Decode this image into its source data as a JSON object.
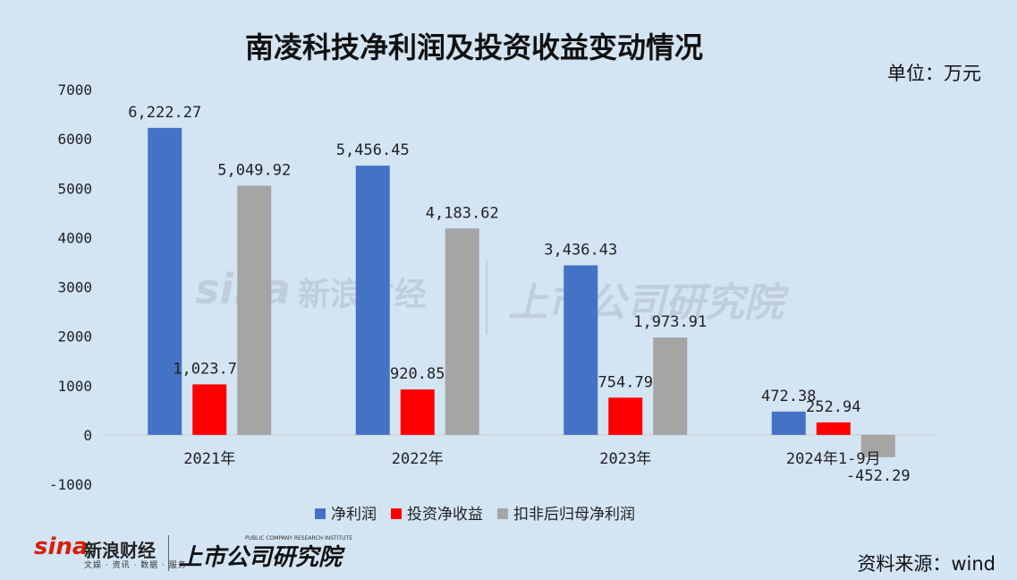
{
  "header": {
    "title": "南凌科技净利润及投资收益变动情况",
    "unit": "单位：万元"
  },
  "footer": {
    "source": "资料来源：wind",
    "logo_sina": "sina",
    "logo_xl": "新浪财经",
    "logo_sub": "文娱 · 资讯 · 数据 · 服务",
    "logo_sc": "上市公司研究院",
    "logo_sc_en": "PUBLIC COMPANY RESEARCH INSTITUTE"
  },
  "chart_data": {
    "type": "bar",
    "categories": [
      "2021年",
      "2022年",
      "2023年",
      "2024年1-9月"
    ],
    "series": [
      {
        "name": "净利润",
        "color": "#4472c4",
        "values": [
          6222.27,
          5456.45,
          3436.43,
          472.38
        ],
        "labels": [
          "6,222.27",
          "5,456.45",
          "3,436.43",
          "472.38"
        ]
      },
      {
        "name": "投资净收益",
        "color": "#ff0000",
        "values": [
          1023.76,
          920.85,
          754.79,
          252.94
        ],
        "labels": [
          "1,023.76",
          "920.85",
          "754.79",
          "252.94"
        ]
      },
      {
        "name": "扣非后归母净利润",
        "color": "#a5a5a5",
        "values": [
          5049.92,
          4183.62,
          1973.91,
          -452.29
        ],
        "labels": [
          "5,049.92",
          "4,183.62",
          "1,973.91",
          "-452.29"
        ]
      }
    ],
    "ylim": [
      -1000,
      7000
    ],
    "yticks": [
      -1000,
      0,
      1000,
      2000,
      3000,
      4000,
      5000,
      6000,
      7000
    ],
    "grid": false,
    "legend_position": "bottom"
  }
}
